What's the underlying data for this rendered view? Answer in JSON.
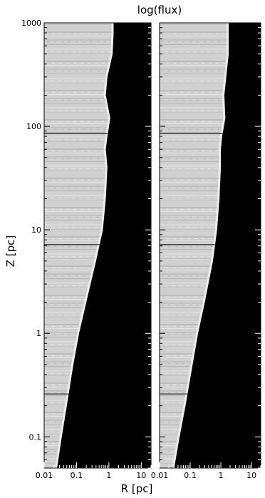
{
  "chart_data": {
    "type": "heatmap",
    "title": "log(flux)",
    "xlabel": "R [pc]",
    "ylabel": "Z [pc]",
    "x_scale": "log",
    "y_scale": "log",
    "xlim": [
      0.01,
      20
    ],
    "ylim": [
      0.05,
      1000
    ],
    "x_ticks": [
      {
        "value": 0.01,
        "label": "0.01"
      },
      {
        "value": 0.1,
        "label": "0.1"
      },
      {
        "value": 1,
        "label": "1"
      },
      {
        "value": 10,
        "label": "10"
      }
    ],
    "y_ticks": [
      {
        "value": 0.1,
        "label": "0.1"
      },
      {
        "value": 1,
        "label": "1"
      },
      {
        "value": 10,
        "label": "10"
      },
      {
        "value": 100,
        "label": "100"
      },
      {
        "value": 1000,
        "label": "1000"
      }
    ],
    "colors": {
      "bright": "#d2d2d2",
      "dark": "#000000",
      "line": "#000000"
    },
    "panels": [
      {
        "horizontal_lines_z": [
          85,
          7.2,
          0.26
        ],
        "boundary": [
          {
            "z": 0.05,
            "r": 0.025
          },
          {
            "z": 0.1,
            "r": 0.035
          },
          {
            "z": 0.2,
            "r": 0.05
          },
          {
            "z": 0.5,
            "r": 0.08
          },
          {
            "z": 1,
            "r": 0.12
          },
          {
            "z": 2,
            "r": 0.2
          },
          {
            "z": 5,
            "r": 0.4
          },
          {
            "z": 10,
            "r": 0.65
          },
          {
            "z": 20,
            "r": 0.8
          },
          {
            "z": 40,
            "r": 0.9
          },
          {
            "z": 60,
            "r": 0.8
          },
          {
            "z": 80,
            "r": 0.9
          },
          {
            "z": 120,
            "r": 1.1
          },
          {
            "z": 200,
            "r": 0.8
          },
          {
            "z": 300,
            "r": 0.9
          },
          {
            "z": 500,
            "r": 1.3
          },
          {
            "z": 800,
            "r": 1.4
          },
          {
            "z": 1000,
            "r": 1.4
          }
        ]
      },
      {
        "horizontal_lines_z": [
          85,
          7.2,
          0.26
        ],
        "boundary": [
          {
            "z": 0.05,
            "r": 0.03
          },
          {
            "z": 0.1,
            "r": 0.045
          },
          {
            "z": 0.2,
            "r": 0.07
          },
          {
            "z": 0.5,
            "r": 0.12
          },
          {
            "z": 1,
            "r": 0.18
          },
          {
            "z": 2,
            "r": 0.3
          },
          {
            "z": 5,
            "r": 0.55
          },
          {
            "z": 10,
            "r": 0.75
          },
          {
            "z": 20,
            "r": 0.9
          },
          {
            "z": 40,
            "r": 1.0
          },
          {
            "z": 60,
            "r": 1.0
          },
          {
            "z": 80,
            "r": 1.1
          },
          {
            "z": 120,
            "r": 1.4
          },
          {
            "z": 200,
            "r": 1.3
          },
          {
            "z": 300,
            "r": 1.5
          },
          {
            "z": 500,
            "r": 1.8
          },
          {
            "z": 800,
            "r": 1.8
          },
          {
            "z": 1000,
            "r": 1.8
          }
        ]
      }
    ]
  }
}
